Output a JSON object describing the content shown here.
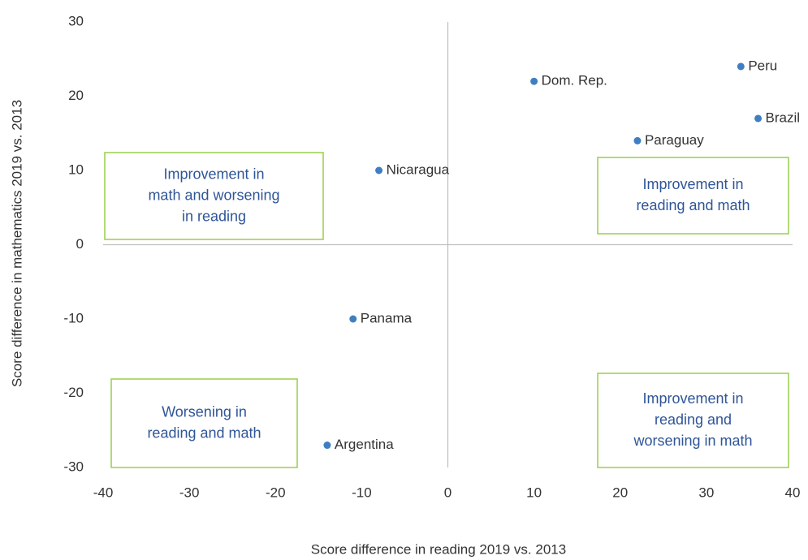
{
  "chart_data": {
    "type": "scatter",
    "x_label": "Score difference in reading 2019 vs. 2013",
    "y_label": "Score difference in mathematics 2019 vs. 2013",
    "labels": [
      "Peru",
      "Dom. Rep.",
      "Brazil",
      "Paraguay",
      "Nicaragua",
      "Panama",
      "Argentina"
    ],
    "x": [
      34,
      10,
      36,
      22,
      -8,
      -11,
      -14
    ],
    "values": [
      24,
      22,
      17,
      14,
      10,
      -10,
      -27
    ],
    "color": "#3f7fc1",
    "xlim": [
      -40,
      40
    ],
    "xticks": [
      -40,
      -30,
      -20,
      -10,
      0,
      10,
      20,
      30,
      40
    ],
    "ylim": [
      -30,
      30
    ],
    "yticks": [
      -30,
      -20,
      -10,
      0,
      10,
      20,
      30
    ],
    "grid": false,
    "annotations": [
      [
        "Improvement in",
        "math and worsening",
        "in reading"
      ],
      [
        "Improvement in",
        "reading and math"
      ],
      [
        "Worsening in",
        "reading and math"
      ],
      [
        "Improvement in",
        "reading and",
        "worsening in math"
      ]
    ]
  }
}
